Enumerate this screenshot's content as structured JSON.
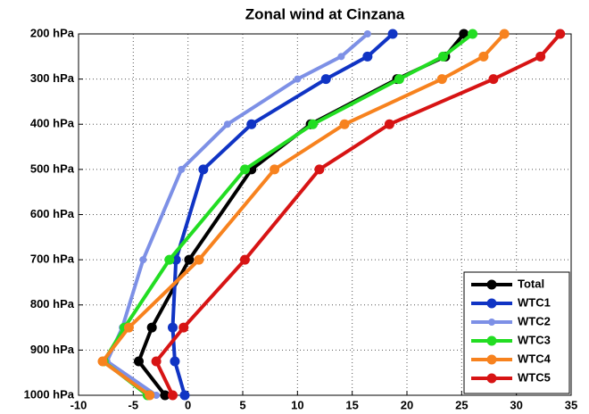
{
  "chart_data": {
    "type": "line",
    "title": "Zonal wind at Cinzana",
    "y": [
      200,
      250,
      300,
      400,
      500,
      700,
      850,
      925,
      1000
    ],
    "series": [
      {
        "name": "Total",
        "color": "#000000",
        "values": [
          25.2,
          23.5,
          19.1,
          11.2,
          5.8,
          0.1,
          -3.3,
          -4.5,
          -2.1
        ]
      },
      {
        "name": "WTC1",
        "color": "#1034c4",
        "values": [
          18.7,
          16.4,
          12.6,
          5.8,
          1.4,
          -1.1,
          -1.4,
          -1.2,
          -0.3
        ]
      },
      {
        "name": "WTC2",
        "color": "#7d90e6",
        "values": [
          16.4,
          14.0,
          10.0,
          3.6,
          -0.6,
          -4.1,
          -6.0,
          -7.4,
          -2.9
        ]
      },
      {
        "name": "WTC3",
        "color": "#22dd22",
        "values": [
          26.0,
          23.3,
          19.3,
          11.4,
          5.2,
          -1.7,
          -5.8,
          -7.7,
          -3.7
        ]
      },
      {
        "name": "WTC4",
        "color": "#f7821e",
        "values": [
          28.9,
          27.0,
          23.2,
          14.3,
          7.9,
          1.0,
          -5.4,
          -7.8,
          -3.5
        ]
      },
      {
        "name": "WTC5",
        "color": "#d71414",
        "values": [
          34.0,
          32.2,
          27.9,
          18.4,
          12.0,
          5.2,
          -0.4,
          -2.9,
          -1.4
        ]
      }
    ],
    "xlim": [
      -10,
      35
    ],
    "xticks": [
      -10,
      -5,
      0,
      5,
      10,
      15,
      20,
      25,
      30,
      35
    ],
    "ylim": [
      1000,
      200
    ],
    "yticks": [
      {
        "value": 200,
        "label": "200 hPa"
      },
      {
        "value": 300,
        "label": "300 hPa"
      },
      {
        "value": 400,
        "label": "400 hPa"
      },
      {
        "value": 500,
        "label": "500 hPa"
      },
      {
        "value": 600,
        "label": "600 hPa"
      },
      {
        "value": 700,
        "label": "700 hPa"
      },
      {
        "value": 800,
        "label": "800 hPa"
      },
      {
        "value": 900,
        "label": "900 hPa"
      },
      {
        "value": 1000,
        "label": "1000 hPa"
      }
    ],
    "grid": true,
    "legend": "lower right"
  }
}
